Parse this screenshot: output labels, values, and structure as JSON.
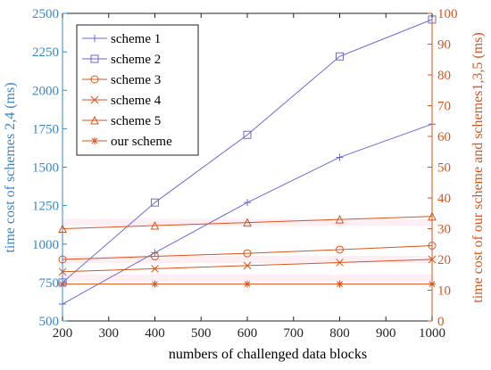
{
  "chart_data": {
    "type": "line",
    "x": [
      200,
      400,
      600,
      800,
      1000
    ],
    "xlabel": "numbers of challenged data blocks",
    "ylabel_left": "time cost of schemes 2,4 (ms)",
    "ylabel_right": "time cost of our scheme and schemes1,3,5 (ms)",
    "xlim": [
      200,
      1000
    ],
    "ylim_left": [
      500,
      2500
    ],
    "ylim_right": [
      0,
      100
    ],
    "xticks": [
      "200",
      "300",
      "400",
      "500",
      "600",
      "700",
      "800",
      "900",
      "1000"
    ],
    "yticks_left": [
      "500",
      "750",
      "1000",
      "1250",
      "1500",
      "1750",
      "2000",
      "2250",
      "2500"
    ],
    "yticks_right": [
      "0",
      "10",
      "20",
      "30",
      "40",
      "50",
      "60",
      "70",
      "80",
      "90",
      "100"
    ],
    "grid": false,
    "legend_position": "top-left",
    "colors": {
      "left_axis": "#3a86c8",
      "right_axis": "#d9541b",
      "blue_series": "#6a6ad8",
      "red_series": "#d9541b",
      "pink_series": "#f7a8c8"
    },
    "series": [
      {
        "name": "scheme 1",
        "axis": "right",
        "marker": "plus",
        "color": "#6a6ad8",
        "values": [
          5.5,
          22.2,
          38.5,
          53.2,
          64.0
        ]
      },
      {
        "name": "scheme 2",
        "axis": "left",
        "marker": "square",
        "color": "#6a6ad8",
        "values": [
          750,
          1270,
          1710,
          2220,
          2460
        ]
      },
      {
        "name": "scheme 3",
        "axis": "right",
        "marker": "circle",
        "color": "#d9541b",
        "values": [
          20,
          21,
          22,
          23.2,
          24.5
        ]
      },
      {
        "name": "scheme 4",
        "axis": "left",
        "marker": "x",
        "color": "#d9541b",
        "values": [
          820,
          840,
          860,
          880,
          900
        ]
      },
      {
        "name": "scheme 5",
        "axis": "right",
        "marker": "triangle",
        "color": "#d9541b",
        "values": [
          30,
          31,
          32,
          33,
          34
        ]
      },
      {
        "name": "our scheme",
        "axis": "right",
        "marker": "star",
        "color": "#d9541b",
        "values": [
          12,
          12,
          12,
          12,
          12
        ]
      }
    ]
  }
}
